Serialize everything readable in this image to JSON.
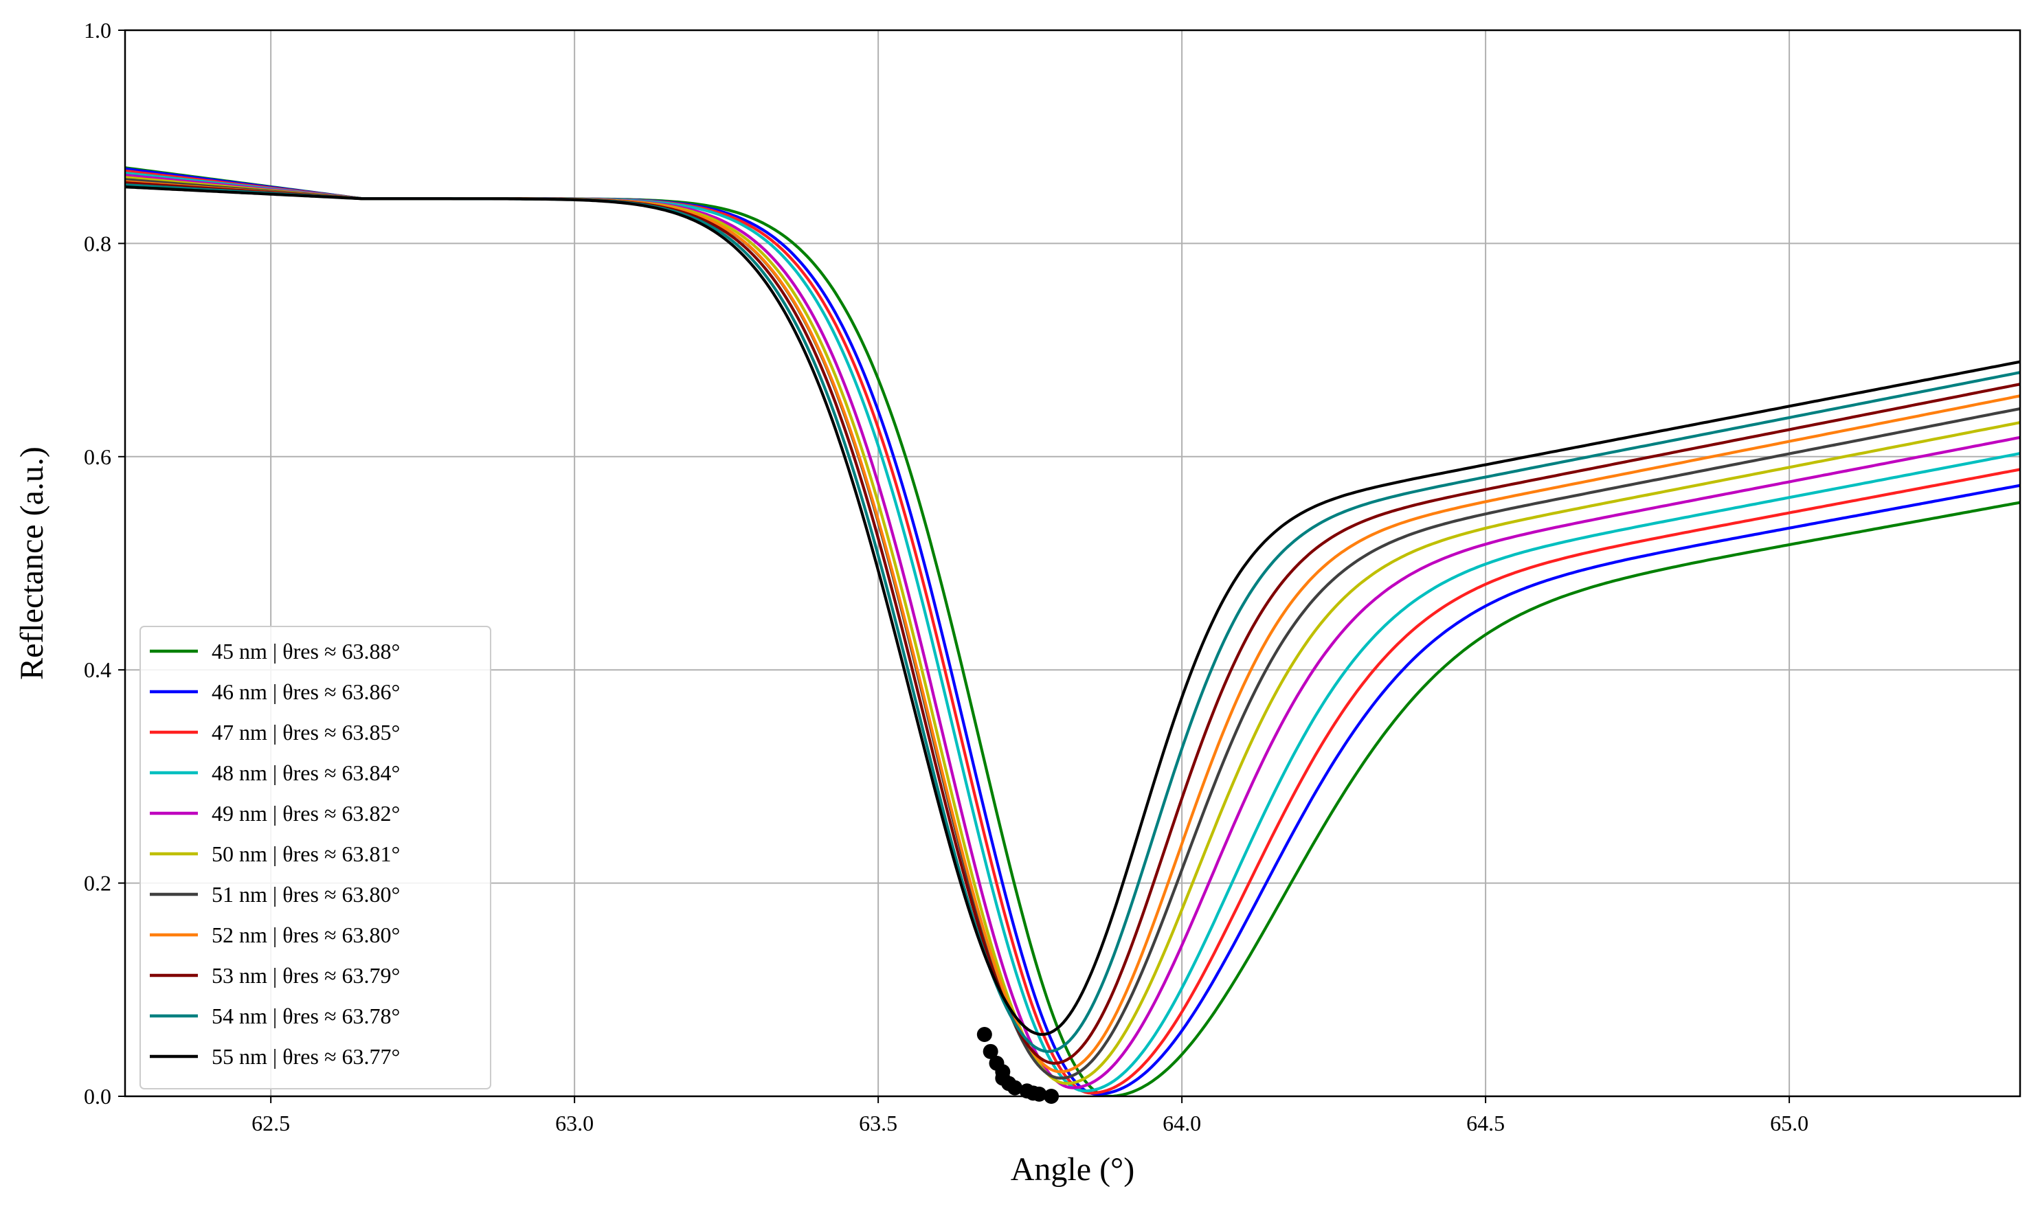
{
  "chart_data": {
    "type": "line",
    "title": "",
    "xlabel": "Angle (°)",
    "ylabel": "Reflectance (a.u.)",
    "xlim": [
      62.26,
      65.38
    ],
    "ylim": [
      0.0,
      1.0
    ],
    "xticks": [
      62.5,
      63.0,
      63.5,
      64.0,
      64.5,
      65.0
    ],
    "xtick_labels": [
      "62.5",
      "63.0",
      "63.5",
      "64.0",
      "64.5",
      "65.0"
    ],
    "yticks": [
      0.0,
      0.2,
      0.4,
      0.6,
      0.8,
      1.0
    ],
    "ytick_labels": [
      "0.0",
      "0.2",
      "0.4",
      "0.6",
      "0.8",
      "1.0"
    ],
    "grid": true,
    "legend_position": "lower-left",
    "marker_color": "#000000",
    "series": [
      {
        "name": "45 nm | θres ≈ 63.88°",
        "color": "#008000",
        "theta_res": 63.88,
        "r_min": 0.0,
        "r_left": 0.871,
        "r_right": 0.557
      },
      {
        "name": "46 nm | θres ≈ 63.86°",
        "color": "#0000ff",
        "theta_res": 63.86,
        "r_min": 0.002,
        "r_left": 0.87,
        "r_right": 0.573
      },
      {
        "name": "47 nm | θres ≈ 63.85°",
        "color": "#ff2020",
        "theta_res": 63.85,
        "r_min": 0.003,
        "r_left": 0.868,
        "r_right": 0.588
      },
      {
        "name": "48 nm | θres ≈ 63.84°",
        "color": "#00bfbf",
        "theta_res": 63.84,
        "r_min": 0.005,
        "r_left": 0.866,
        "r_right": 0.603
      },
      {
        "name": "49 nm | θres ≈ 63.82°",
        "color": "#bf00bf",
        "theta_res": 63.82,
        "r_min": 0.008,
        "r_left": 0.864,
        "r_right": 0.618
      },
      {
        "name": "50 nm | θres ≈ 63.81°",
        "color": "#bfbf00",
        "theta_res": 63.81,
        "r_min": 0.012,
        "r_left": 0.862,
        "r_right": 0.632
      },
      {
        "name": "51 nm | θres ≈ 63.80°",
        "color": "#404040",
        "theta_res": 63.8,
        "r_min": 0.017,
        "r_left": 0.86,
        "r_right": 0.645
      },
      {
        "name": "52 nm | θres ≈ 63.80°",
        "color": "#ff7f0e",
        "theta_res": 63.8,
        "r_min": 0.023,
        "r_left": 0.858,
        "r_right": 0.657
      },
      {
        "name": "53 nm | θres ≈ 63.79°",
        "color": "#800000",
        "theta_res": 63.79,
        "r_min": 0.031,
        "r_left": 0.857,
        "r_right": 0.668
      },
      {
        "name": "54 nm | θres ≈ 63.78°",
        "color": "#008080",
        "theta_res": 63.78,
        "r_min": 0.042,
        "r_left": 0.855,
        "r_right": 0.679
      },
      {
        "name": "55 nm | θres ≈ 63.77°",
        "color": "#000000",
        "theta_res": 63.77,
        "r_min": 0.058,
        "r_left": 0.853,
        "r_right": 0.689
      }
    ]
  }
}
